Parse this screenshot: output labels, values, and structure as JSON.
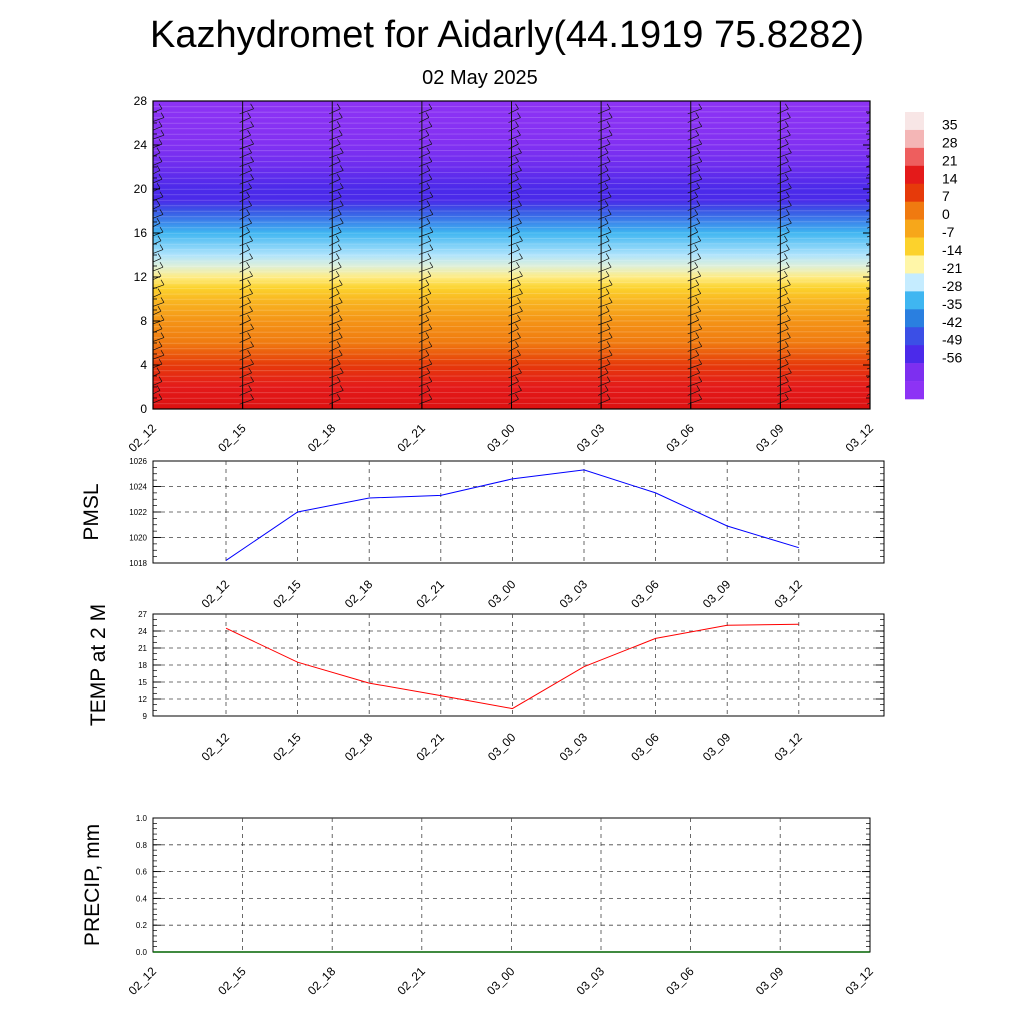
{
  "title": "Kazhydromet for Aidarly(44.1919 75.8282)",
  "subtitle": "02 May 2025",
  "chart_data": [
    {
      "id": "cross_section",
      "type": "heatmap",
      "description_visible": "",
      "x": [
        "02_12",
        "02_15",
        "02_18",
        "02_21",
        "03_00",
        "03_03",
        "03_06",
        "03_09",
        "03_12"
      ],
      "y_ticks": [
        0,
        4,
        8,
        12,
        16,
        20,
        24,
        28
      ],
      "ylim": [
        0,
        28
      ],
      "temperature_profile": {
        "heights": [
          0,
          2,
          4,
          6,
          8,
          10,
          11,
          12,
          13,
          14,
          16,
          18,
          19,
          20,
          22,
          24,
          26,
          28
        ],
        "values": [
          28,
          21,
          14,
          7,
          3,
          -3,
          -7,
          -12,
          -18,
          -24,
          -35,
          -48,
          -56,
          -56,
          -60,
          -64,
          -66,
          -68
        ]
      },
      "colorbar": {
        "labels": [
          "35",
          "28",
          "21",
          "14",
          "7",
          "0",
          "-7",
          "-14",
          "-21",
          "-28",
          "-35",
          "-42",
          "-49",
          "-56"
        ],
        "colors": [
          "#f8e6e6",
          "#f4b6b6",
          "#ee5e5e",
          "#e41a1a",
          "#e63a0a",
          "#f07a10",
          "#f7a71a",
          "#fcd22c",
          "#fff6a8",
          "#c5ecff",
          "#3fb6f1",
          "#2a7fe0",
          "#3b4fe6",
          "#4b2aea",
          "#7d2ff0",
          "#8d33f5"
        ]
      },
      "wind_barbs": true
    },
    {
      "id": "pmsl",
      "type": "line",
      "ylabel": "PMSL",
      "categories": [
        "02_12",
        "02_15",
        "02_18",
        "02_21",
        "03_00",
        "03_03",
        "03_06",
        "03_09",
        "03_12"
      ],
      "values": [
        1018.2,
        1022.0,
        1023.1,
        1023.3,
        1024.6,
        1025.3,
        1023.5,
        1020.9,
        1019.2
      ],
      "ylim": [
        1018,
        1026
      ],
      "yticks": [
        1018,
        1020,
        1022,
        1024,
        1026
      ],
      "color": "#0000ff",
      "grid": true
    },
    {
      "id": "temp2m",
      "type": "line",
      "ylabel": "TEMP at 2 M",
      "categories": [
        "02_12",
        "02_15",
        "02_18",
        "02_21",
        "03_00",
        "03_03",
        "03_06",
        "03_09",
        "03_12"
      ],
      "values": [
        24.5,
        18.5,
        14.8,
        12.6,
        10.3,
        17.7,
        22.7,
        25.0,
        25.2
      ],
      "ylim": [
        9,
        27
      ],
      "yticks": [
        9,
        12,
        15,
        18,
        21,
        24,
        27
      ],
      "color": "#ff0000",
      "grid": true
    },
    {
      "id": "precip",
      "type": "line",
      "ylabel": "PRECIP, mm",
      "categories": [
        "02_12",
        "02_15",
        "02_18",
        "02_21",
        "03_00",
        "03_03",
        "03_06",
        "03_09",
        "03_12"
      ],
      "values": [
        0,
        0,
        0,
        0,
        0,
        0,
        0,
        0,
        0
      ],
      "ylim": [
        0,
        1
      ],
      "yticks": [
        "0.0",
        "0.2",
        "0.4",
        "0.6",
        "0.8",
        "1.0"
      ],
      "color": "#006400",
      "grid": true
    }
  ]
}
